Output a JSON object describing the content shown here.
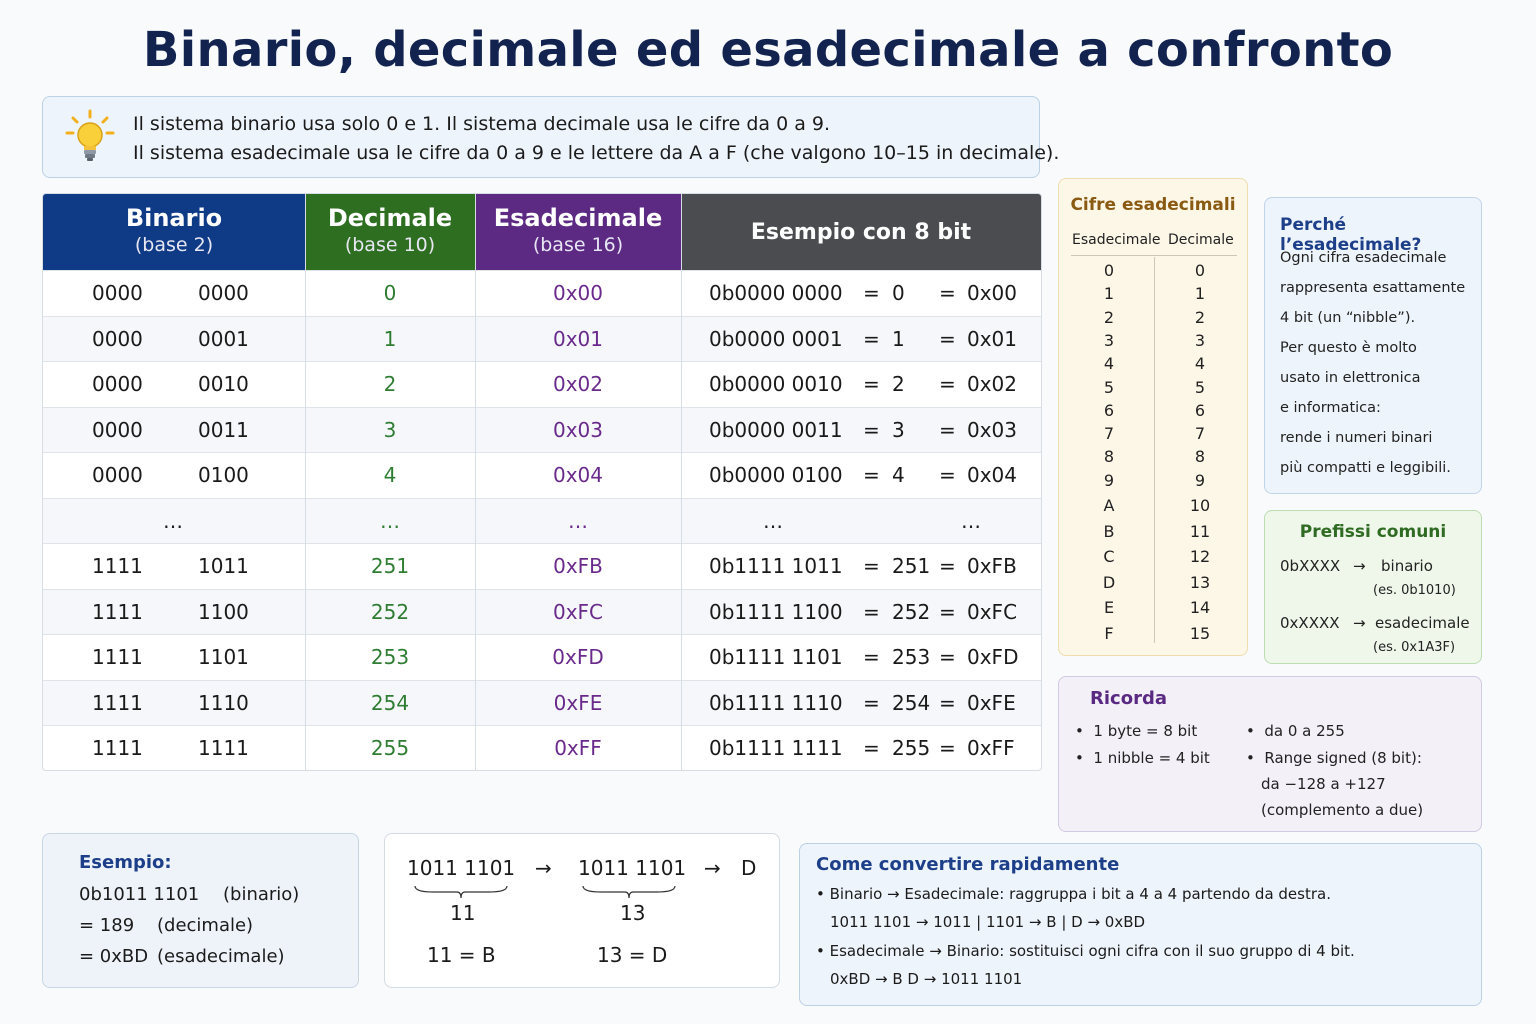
{
  "title": "Binario, decimale ed esadecimale a confronto",
  "intro": {
    "line1": "Il sistema binario usa solo 0 e 1.  Il sistema decimale usa le cifre da 0 a 9.",
    "line2": "Il sistema esadecimale usa le cifre da 0 a 9 e le lettere da A a F (che valgono 10–15 in decimale).",
    "icon": "lightbulb-icon"
  },
  "colors": {
    "binary": "#0f3a85",
    "decimal": "#2e6e21",
    "hex": "#5d2a83",
    "example": "#4a4c4f"
  },
  "table": {
    "headers": {
      "binary": "Binario",
      "binary_base": "(base 2)",
      "decimal": "Decimale",
      "decimal_base": "(base 10)",
      "hex": "Esadecimale",
      "hex_base": "(base 16)",
      "example": "Esempio con 8 bit"
    },
    "rows": [
      {
        "b1": "0000",
        "b2": "0000",
        "dec": "0",
        "hex": "0x00",
        "ex": "0b0000  0000",
        "eq1": "=",
        "exdec": "0",
        "eq2": "=",
        "exhex": "0x00"
      },
      {
        "b1": "0000",
        "b2": "0001",
        "dec": "1",
        "hex": "0x01",
        "ex": "0b0000  0001",
        "eq1": "=",
        "exdec": "1",
        "eq2": "=",
        "exhex": "0x01"
      },
      {
        "b1": "0000",
        "b2": "0010",
        "dec": "2",
        "hex": "0x02",
        "ex": "0b0000  0010",
        "eq1": "=",
        "exdec": "2",
        "eq2": "=",
        "exhex": "0x02"
      },
      {
        "b1": "0000",
        "b2": "0011",
        "dec": "3",
        "hex": "0x03",
        "ex": "0b0000  0011",
        "eq1": "=",
        "exdec": "3",
        "eq2": "=",
        "exhex": "0x03"
      },
      {
        "b1": "0000",
        "b2": "0100",
        "dec": "4",
        "hex": "0x04",
        "ex": "0b0000  0100",
        "eq1": "=",
        "exdec": "4",
        "eq2": "=",
        "exhex": "0x04"
      },
      {
        "b1": "…",
        "b2": "",
        "dec": "…",
        "hex": "…",
        "ex": "…",
        "eq1": "",
        "exdec": "",
        "eq2": "",
        "exhex": "…"
      },
      {
        "b1": "1111",
        "b2": "1011",
        "dec": "251",
        "hex": "0xFB",
        "ex": "0b1111  1011",
        "eq1": "=",
        "exdec": "251",
        "eq2": "=",
        "exhex": "0xFB"
      },
      {
        "b1": "1111",
        "b2": "1100",
        "dec": "252",
        "hex": "0xFC",
        "ex": "0b1111  1100",
        "eq1": "=",
        "exdec": "252",
        "eq2": "=",
        "exhex": "0xFC"
      },
      {
        "b1": "1111",
        "b2": "1101",
        "dec": "253",
        "hex": "0xFD",
        "ex": "0b1111  1101",
        "eq1": "=",
        "exdec": "253",
        "eq2": "=",
        "exhex": "0xFD"
      },
      {
        "b1": "1111",
        "b2": "1110",
        "dec": "254",
        "hex": "0xFE",
        "ex": "0b1111  1110",
        "eq1": "=",
        "exdec": "254",
        "eq2": "=",
        "exhex": "0xFE"
      },
      {
        "b1": "1111",
        "b2": "1111",
        "dec": "255",
        "hex": "0xFF",
        "ex": "0b1111  1111",
        "eq1": "=",
        "exdec": "255",
        "eq2": "=",
        "exhex": "0xFF"
      }
    ]
  },
  "hex_digits": {
    "title": "Cifre esadecimali",
    "col_hex": "Esadecimale",
    "col_dec": "Decimale",
    "rows": [
      [
        "0",
        "0"
      ],
      [
        "1",
        "1"
      ],
      [
        "2",
        "2"
      ],
      [
        "3",
        "3"
      ],
      [
        "4",
        "4"
      ],
      [
        "5",
        "5"
      ],
      [
        "6",
        "6"
      ],
      [
        "7",
        "7"
      ],
      [
        "8",
        "8"
      ],
      [
        "9",
        "9"
      ],
      [
        "A",
        "10"
      ],
      [
        "B",
        "11"
      ],
      [
        "C",
        "12"
      ],
      [
        "D",
        "13"
      ],
      [
        "E",
        "14"
      ],
      [
        "F",
        "15"
      ]
    ]
  },
  "why_hex": {
    "title": "Perché l’esadecimale?",
    "lines": [
      "Ogni cifra esadecimale",
      "rappresenta esattamente",
      "4 bit (un “nibble”).",
      "Per questo è molto",
      "usato in elettronica",
      "e informatica:",
      "rende i numeri binari",
      "più compatti e leggibili."
    ]
  },
  "prefixes": {
    "title": "Prefissi comuni",
    "bin_prefix": "0bXXXX",
    "bin_arrow": "→",
    "bin_label": "binario",
    "bin_example": "(es. 0b1010)",
    "hex_prefix": "0xXXXX",
    "hex_arrow": "→",
    "hex_label": "esadecimale",
    "hex_example": "(es. 0x1A3F)"
  },
  "remember": {
    "title": "Ricorda",
    "left": [
      "1 byte = 8 bit",
      "1 nibble = 4 bit"
    ],
    "right1": "da 0 a 255",
    "right2": "Range signed (8 bit):",
    "right3": "da −128 a +127",
    "right4": "(complemento a due)"
  },
  "example": {
    "title": "Esempio:",
    "l1_val": "0b1011  1101",
    "l1_note": "(binario)",
    "l2_val": "= 189",
    "l2_note": "(decimale)",
    "l3_val": "= 0xBD",
    "l3_note": "(esadecimale)"
  },
  "grouping": {
    "g1": "1011  1101",
    "arrow1": "→",
    "g2": "1011  1101",
    "arrow2": "→",
    "g3": "D",
    "n1": "11",
    "n2": "13",
    "r1": "11  =  B",
    "r2": "13  =  D"
  },
  "convert": {
    "title": "Come convertire rapidamente",
    "b1": "Binario  →  Esadecimale:  raggruppa i bit a 4 a 4 partendo da destra.",
    "b1_ex": "1011  1101   →   1011  |  1101   →   B  |  D   →   0xBD",
    "b2": "Esadecimale  →  Binario:  sostituisci ogni cifra con il suo gruppo di 4 bit.",
    "b2_ex": "0xBD   →   B  D   →   1011  1101"
  }
}
